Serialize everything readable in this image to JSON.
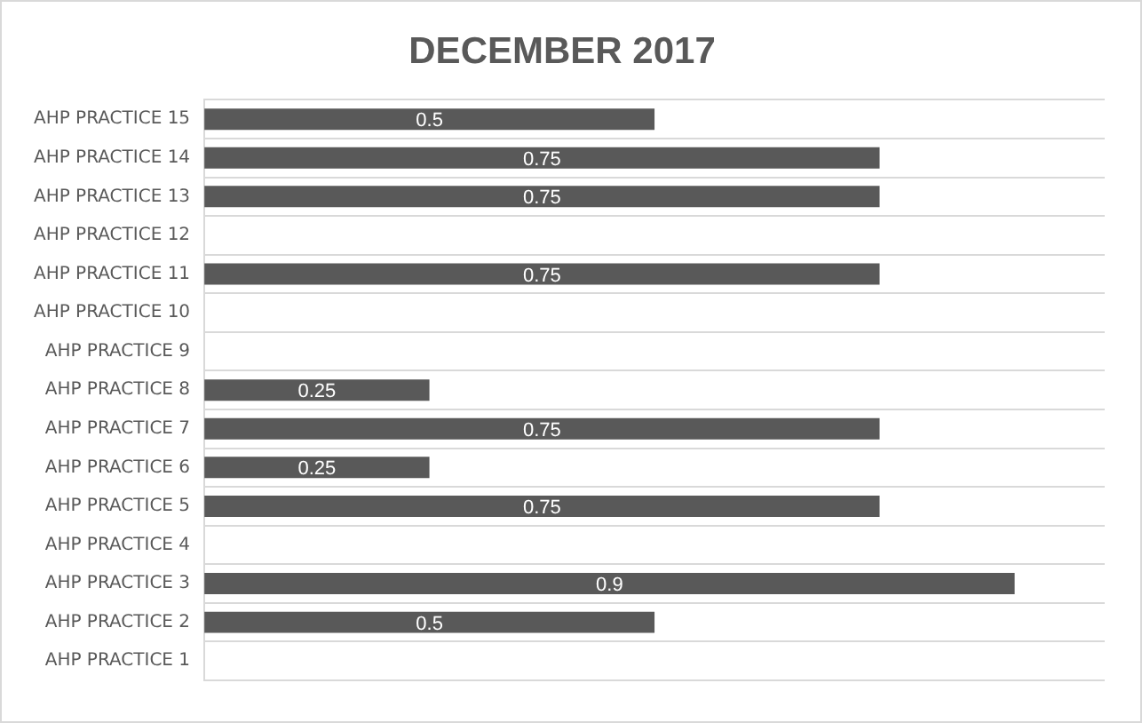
{
  "chart_data": {
    "type": "bar",
    "orientation": "horizontal",
    "title": "DECEMBER 2017",
    "categories": [
      "AHP PRACTICE 15",
      "AHP PRACTICE 14",
      "AHP PRACTICE 13",
      "AHP PRACTICE 12",
      "AHP PRACTICE 11",
      "AHP PRACTICE 10",
      "AHP PRACTICE 9",
      "AHP PRACTICE 8",
      "AHP PRACTICE 7",
      "AHP PRACTICE 6",
      "AHP PRACTICE 5",
      "AHP PRACTICE 4",
      "AHP PRACTICE 3",
      "AHP PRACTICE 2",
      "AHP PRACTICE 1"
    ],
    "values": [
      0.5,
      0.75,
      0.75,
      null,
      0.75,
      null,
      null,
      0.25,
      0.75,
      0.25,
      0.75,
      null,
      0.9,
      0.5,
      null
    ],
    "color": "#595959",
    "xlim": [
      0,
      1
    ],
    "data_labels": true,
    "grid": "y",
    "tick_labels": "y",
    "legend": false
  }
}
